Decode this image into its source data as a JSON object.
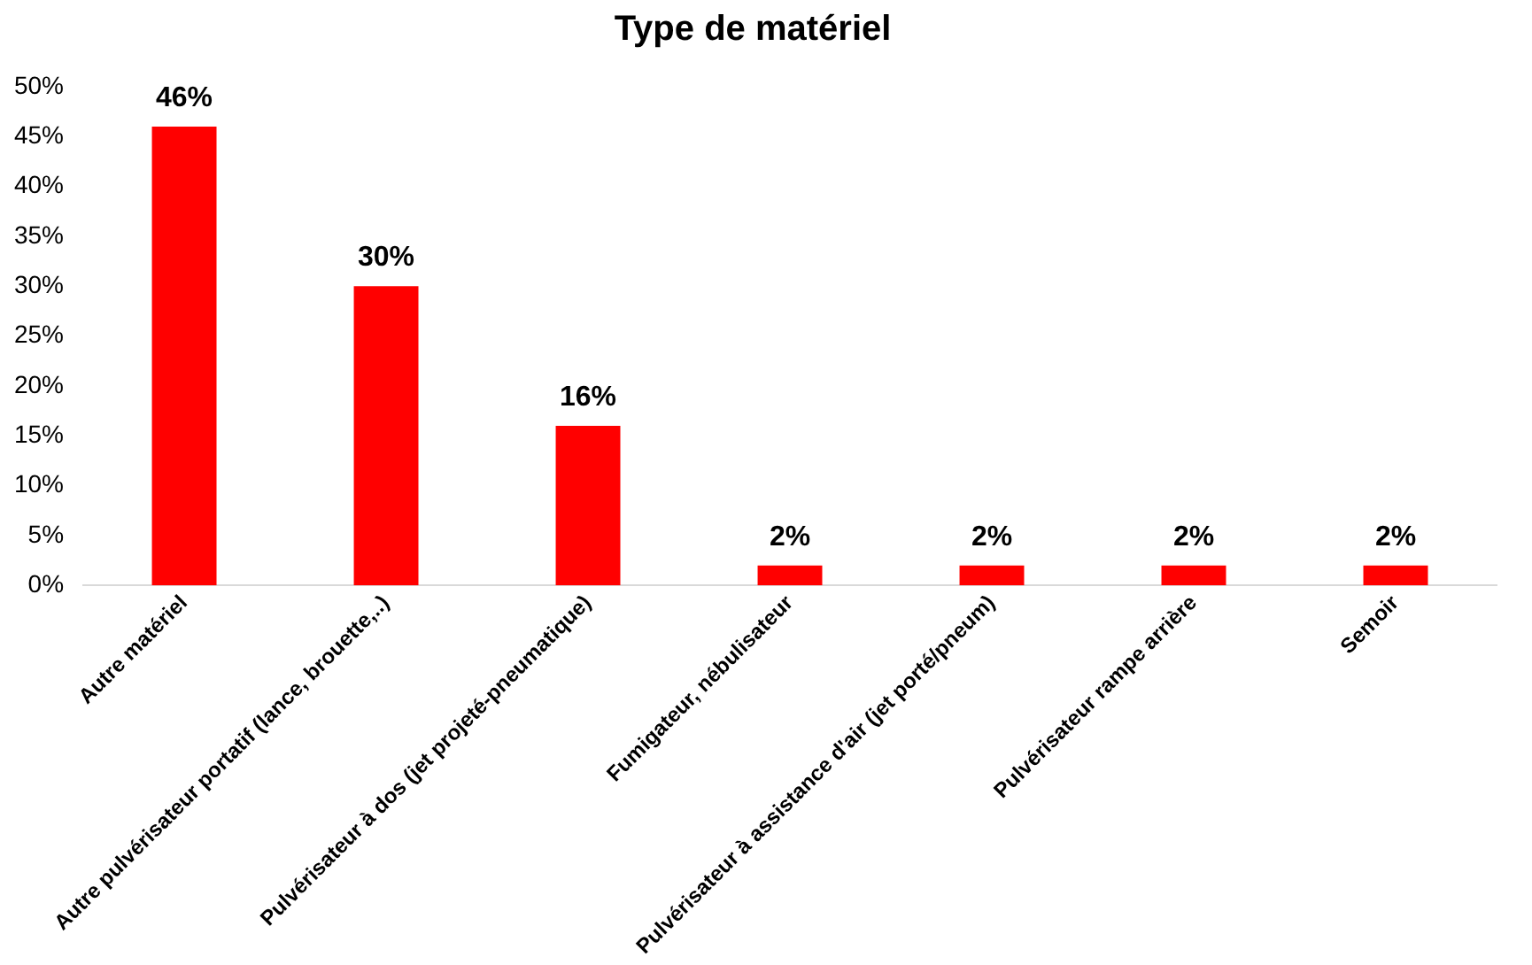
{
  "chart_data": {
    "type": "bar",
    "title": "Type de matériel",
    "categories": [
      "Autre matériel",
      "Autre pulvérisateur portatif (lance, brouette,..)",
      "Pulvérisateur à dos (jet projeté-pneumatique)",
      "Fumigateur, nébulisateur",
      "Pulvérisateur à assistance d'air (jet porté/pneum)",
      "Pulvérisateur rampe arrière",
      "Semoir"
    ],
    "values": [
      46,
      30,
      16,
      2,
      2,
      2,
      2
    ],
    "value_labels": [
      "46%",
      "30%",
      "16%",
      "2%",
      "2%",
      "2%",
      "2%"
    ],
    "color": "#ff0000",
    "ylim": [
      0,
      50
    ],
    "yticks": [
      {
        "value": 0,
        "label": "0%"
      },
      {
        "value": 5,
        "label": "5%"
      },
      {
        "value": 10,
        "label": "10%"
      },
      {
        "value": 15,
        "label": "15%"
      },
      {
        "value": 20,
        "label": "20%"
      },
      {
        "value": 25,
        "label": "25%"
      },
      {
        "value": 30,
        "label": "30%"
      },
      {
        "value": 35,
        "label": "35%"
      },
      {
        "value": 40,
        "label": "40%"
      },
      {
        "value": 45,
        "label": "45%"
      },
      {
        "value": 50,
        "label": "50%"
      }
    ],
    "grid": false,
    "legend": false
  }
}
